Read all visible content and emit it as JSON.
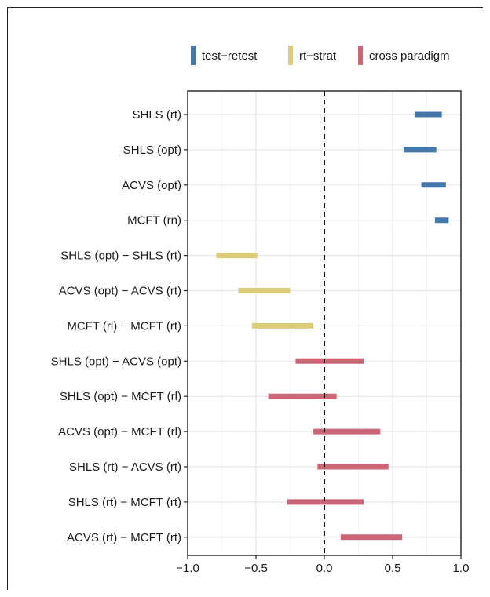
{
  "chart_data": {
    "type": "interval",
    "title": "",
    "xlabel": "",
    "ylabel": "",
    "xlim": [
      -1.0,
      1.0
    ],
    "xticks": [
      -1.0,
      -0.5,
      0.0,
      0.5,
      1.0
    ],
    "xtick_labels": [
      "−1.0",
      "−0.5",
      "0.0",
      "0.5",
      "1.0"
    ],
    "reference_line": 0.0,
    "grid": true,
    "legend_position": "top-right",
    "legend": [
      {
        "key": "test-retest",
        "label": "test−retest",
        "color": "#4477AA"
      },
      {
        "key": "rt-strat",
        "label": "rt−strat",
        "color": "#DDCC77"
      },
      {
        "key": "cross",
        "label": "cross paradigm",
        "color": "#CC6677"
      }
    ],
    "rows": [
      {
        "label": "SHLS (rt)",
        "group": "test-retest",
        "low": 0.66,
        "high": 0.86
      },
      {
        "label": "SHLS (opt)",
        "group": "test-retest",
        "low": 0.58,
        "high": 0.82
      },
      {
        "label": "ACVS (opt)",
        "group": "test-retest",
        "low": 0.71,
        "high": 0.89
      },
      {
        "label": "MCFT (rn)",
        "group": "test-retest",
        "low": 0.81,
        "high": 0.91
      },
      {
        "label": "SHLS (opt) − SHLS (rt)",
        "group": "rt-strat",
        "low": -0.79,
        "high": -0.49
      },
      {
        "label": "ACVS (opt) − ACVS (rt)",
        "group": "rt-strat",
        "low": -0.63,
        "high": -0.25
      },
      {
        "label": "MCFT (rl) − MCFT (rt)",
        "group": "rt-strat",
        "low": -0.53,
        "high": -0.08
      },
      {
        "label": "SHLS (opt) − ACVS (opt)",
        "group": "cross",
        "low": -0.21,
        "high": 0.29
      },
      {
        "label": "SHLS (opt) − MCFT (rl)",
        "group": "cross",
        "low": -0.41,
        "high": 0.09
      },
      {
        "label": "ACVS (opt) − MCFT (rl)",
        "group": "cross",
        "low": -0.08,
        "high": 0.41
      },
      {
        "label": "SHLS (rt) − ACVS (rt)",
        "group": "cross",
        "low": -0.05,
        "high": 0.47
      },
      {
        "label": "SHLS (rt) − MCFT (rt)",
        "group": "cross",
        "low": -0.27,
        "high": 0.29
      },
      {
        "label": "ACVS (rt) − MCFT (rt)",
        "group": "cross",
        "low": 0.12,
        "high": 0.57
      }
    ]
  }
}
